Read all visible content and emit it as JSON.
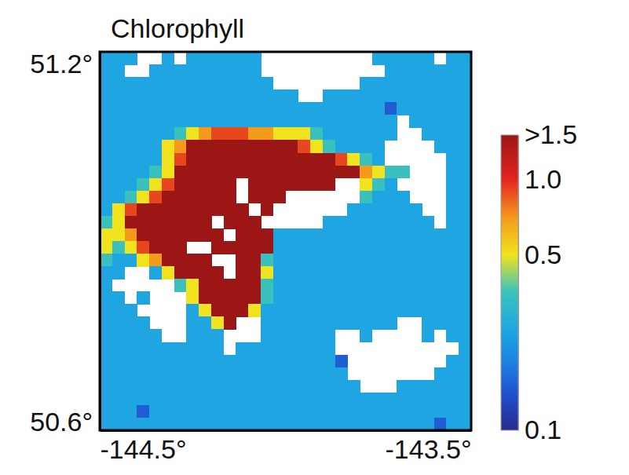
{
  "chart_data": {
    "type": "heatmap",
    "title": "Chlorophyll",
    "xlim": [
      -144.5,
      -143.5
    ],
    "xticks": [
      {
        "value": -144.5,
        "label": "-144.5°"
      },
      {
        "value": -143.5,
        "label": "-143.5°"
      }
    ],
    "ylim": [
      50.6,
      51.2
    ],
    "yticks": [
      {
        "value": 50.6,
        "label": "50.6°"
      },
      {
        "value": 51.2,
        "label": "51.2°"
      }
    ],
    "cells": [
      [
        0.25,
        0.25,
        0.25,
        null,
        null,
        0.25,
        null,
        0.25,
        0.25,
        0.25,
        0.25,
        0.25,
        0.25,
        null,
        null,
        null,
        null,
        null,
        null,
        null,
        null,
        null,
        0.25,
        0.25,
        0.25,
        0.25,
        0.25,
        null,
        0.25,
        0.25
      ],
      [
        0.25,
        0.25,
        null,
        null,
        0.25,
        0.25,
        0.25,
        0.25,
        0.25,
        0.25,
        0.25,
        0.25,
        0.25,
        null,
        null,
        null,
        null,
        null,
        null,
        null,
        null,
        null,
        null,
        0.25,
        0.25,
        0.25,
        0.25,
        0.25,
        0.25,
        0.25
      ],
      [
        0.25,
        0.25,
        0.25,
        0.25,
        0.25,
        0.25,
        0.25,
        0.25,
        0.25,
        0.25,
        0.25,
        0.25,
        0.25,
        0.25,
        null,
        null,
        null,
        null,
        null,
        null,
        null,
        0.25,
        0.25,
        0.25,
        0.25,
        0.25,
        0.25,
        0.25,
        0.25,
        0.25
      ],
      [
        0.25,
        0.25,
        0.25,
        0.25,
        0.25,
        0.25,
        0.25,
        0.25,
        0.25,
        0.25,
        0.25,
        0.25,
        0.25,
        0.25,
        0.25,
        0.25,
        null,
        null,
        0.25,
        0.25,
        0.25,
        0.25,
        0.25,
        0.25,
        0.25,
        0.25,
        0.25,
        0.25,
        0.25,
        0.25
      ],
      [
        0.25,
        0.25,
        0.25,
        0.25,
        0.25,
        0.25,
        0.25,
        0.25,
        0.25,
        0.25,
        0.25,
        0.25,
        0.25,
        0.25,
        0.25,
        0.25,
        0.25,
        0.25,
        0.25,
        0.25,
        0.25,
        0.25,
        0.25,
        0.15,
        0.25,
        0.25,
        0.25,
        0.25,
        0.25,
        0.25
      ],
      [
        0.25,
        0.25,
        0.25,
        0.25,
        0.25,
        0.25,
        0.25,
        0.25,
        0.25,
        0.25,
        0.25,
        0.25,
        0.25,
        0.25,
        0.25,
        0.25,
        0.25,
        0.25,
        0.25,
        0.25,
        0.25,
        0.25,
        0.25,
        0.25,
        null,
        0.25,
        0.25,
        0.25,
        0.25,
        0.25
      ],
      [
        0.25,
        0.25,
        0.25,
        0.25,
        0.25,
        0.25,
        0.35,
        0.5,
        0.7,
        0.9,
        0.9,
        0.9,
        0.7,
        0.7,
        0.5,
        0.5,
        0.5,
        0.35,
        0.25,
        0.25,
        0.25,
        0.25,
        0.25,
        0.25,
        null,
        null,
        0.25,
        0.25,
        0.25,
        0.25
      ],
      [
        0.25,
        0.25,
        0.25,
        0.25,
        0.25,
        0.5,
        0.7,
        1.6,
        1.6,
        1.6,
        1.6,
        1.6,
        1.6,
        1.6,
        1.6,
        1.6,
        0.9,
        0.5,
        0.35,
        0.25,
        0.25,
        0.25,
        0.25,
        null,
        null,
        null,
        null,
        0.25,
        0.25,
        0.25
      ],
      [
        0.25,
        0.25,
        0.25,
        0.25,
        0.25,
        0.5,
        0.9,
        1.6,
        1.6,
        1.6,
        1.6,
        1.6,
        1.6,
        1.6,
        1.6,
        1.6,
        1.6,
        1.6,
        1.6,
        0.9,
        0.5,
        0.35,
        0.25,
        null,
        null,
        null,
        null,
        null,
        0.25,
        0.25
      ],
      [
        0.25,
        0.25,
        0.25,
        0.25,
        0.35,
        0.5,
        1.6,
        1.6,
        1.6,
        1.6,
        1.6,
        1.6,
        1.6,
        1.6,
        1.6,
        1.6,
        1.6,
        1.6,
        1.6,
        1.6,
        1.6,
        0.7,
        0.5,
        0.35,
        0.35,
        null,
        null,
        null,
        0.25,
        0.25
      ],
      [
        0.25,
        0.25,
        0.25,
        0.35,
        0.5,
        0.9,
        1.6,
        1.6,
        1.6,
        1.6,
        1.6,
        null,
        1.6,
        1.6,
        1.6,
        1.6,
        1.6,
        1.6,
        1.6,
        null,
        null,
        0.5,
        0.35,
        0.25,
        null,
        null,
        null,
        null,
        0.25,
        0.25
      ],
      [
        0.25,
        0.25,
        0.35,
        0.5,
        0.9,
        1.6,
        1.6,
        1.6,
        1.6,
        1.6,
        1.6,
        null,
        1.6,
        1.6,
        1.6,
        null,
        null,
        null,
        null,
        null,
        null,
        0.35,
        0.25,
        0.25,
        0.25,
        null,
        null,
        null,
        0.25,
        0.25
      ],
      [
        0.25,
        0.5,
        0.9,
        1.6,
        1.6,
        1.6,
        1.6,
        1.6,
        1.6,
        1.6,
        1.6,
        1.6,
        null,
        1.6,
        null,
        null,
        null,
        null,
        null,
        null,
        0.25,
        0.25,
        0.25,
        0.25,
        0.25,
        0.25,
        null,
        null,
        0.25,
        0.25
      ],
      [
        0.35,
        0.5,
        1.6,
        1.6,
        1.6,
        1.6,
        1.6,
        1.6,
        1.6,
        null,
        1.6,
        1.6,
        1.6,
        null,
        null,
        null,
        null,
        null,
        0.25,
        0.25,
        0.25,
        0.25,
        0.25,
        0.25,
        0.25,
        0.25,
        0.25,
        null,
        0.25,
        0.25
      ],
      [
        0.5,
        0.5,
        0.7,
        1.6,
        1.6,
        1.6,
        1.6,
        1.6,
        1.6,
        1.6,
        null,
        1.6,
        1.6,
        1.6,
        0.25,
        0.25,
        0.25,
        0.25,
        0.25,
        0.25,
        0.25,
        0.25,
        0.25,
        0.25,
        0.25,
        0.25,
        0.25,
        0.25,
        0.25,
        0.25
      ],
      [
        0.5,
        0.35,
        0.5,
        0.9,
        1.6,
        1.6,
        1.6,
        null,
        null,
        1.6,
        1.6,
        1.6,
        1.6,
        1.6,
        0.25,
        0.25,
        0.25,
        0.25,
        0.25,
        0.25,
        0.25,
        0.25,
        0.25,
        0.25,
        0.25,
        0.25,
        0.25,
        0.25,
        0.25,
        0.25
      ],
      [
        0.35,
        0.25,
        0.25,
        0.5,
        0.7,
        1.6,
        1.6,
        1.6,
        1.6,
        null,
        null,
        1.6,
        1.6,
        0.35,
        0.25,
        0.25,
        0.25,
        0.25,
        0.25,
        0.25,
        0.25,
        0.25,
        0.25,
        0.25,
        0.25,
        0.25,
        0.25,
        0.25,
        0.25,
        0.25
      ],
      [
        0.25,
        0.25,
        null,
        null,
        0.25,
        0.5,
        1.6,
        1.6,
        1.6,
        1.6,
        null,
        1.6,
        1.6,
        0.5,
        0.25,
        0.25,
        0.25,
        0.25,
        0.25,
        0.25,
        0.25,
        0.25,
        0.25,
        0.25,
        0.25,
        0.25,
        0.25,
        0.25,
        0.25,
        0.25
      ],
      [
        0.25,
        null,
        null,
        null,
        null,
        null,
        0.35,
        0.5,
        1.6,
        1.6,
        1.6,
        1.6,
        1.6,
        0.35,
        0.25,
        0.25,
        0.25,
        0.25,
        0.25,
        0.25,
        0.25,
        0.25,
        0.25,
        0.25,
        0.25,
        0.25,
        0.25,
        0.25,
        0.25,
        0.25
      ],
      [
        0.25,
        0.25,
        null,
        0.25,
        null,
        null,
        null,
        0.5,
        1.6,
        1.6,
        1.6,
        1.6,
        1.6,
        0.35,
        0.25,
        0.25,
        0.25,
        0.25,
        0.25,
        0.25,
        0.25,
        0.25,
        0.25,
        0.25,
        0.25,
        0.25,
        0.25,
        0.25,
        0.25,
        0.25
      ],
      [
        0.25,
        0.25,
        0.25,
        null,
        null,
        null,
        null,
        0.25,
        0.5,
        1.6,
        1.6,
        1.6,
        0.5,
        0.25,
        0.25,
        0.25,
        0.25,
        0.25,
        0.25,
        0.25,
        0.25,
        0.25,
        0.25,
        0.25,
        0.25,
        0.25,
        0.25,
        0.25,
        0.25,
        0.25
      ],
      [
        0.25,
        0.25,
        0.25,
        0.25,
        null,
        null,
        null,
        0.25,
        0.25,
        0.5,
        1.6,
        null,
        null,
        0.25,
        0.25,
        0.25,
        0.25,
        0.25,
        0.25,
        0.25,
        0.25,
        0.25,
        0.25,
        0.25,
        null,
        null,
        0.25,
        0.25,
        0.25,
        0.25
      ],
      [
        0.25,
        0.25,
        0.25,
        0.25,
        0.25,
        null,
        null,
        0.25,
        0.25,
        0.25,
        null,
        null,
        null,
        0.25,
        0.25,
        0.25,
        0.25,
        0.25,
        0.25,
        null,
        null,
        0.25,
        null,
        null,
        null,
        null,
        0.25,
        null,
        0.25,
        0.25
      ],
      [
        0.25,
        0.25,
        0.25,
        0.25,
        0.25,
        0.25,
        0.25,
        0.25,
        0.25,
        0.25,
        null,
        0.25,
        0.25,
        0.25,
        0.25,
        0.25,
        0.25,
        0.25,
        0.25,
        null,
        null,
        null,
        null,
        null,
        null,
        null,
        null,
        null,
        null,
        0.25
      ],
      [
        0.25,
        0.25,
        0.25,
        0.25,
        0.25,
        0.25,
        0.25,
        0.25,
        0.25,
        0.25,
        0.25,
        0.25,
        0.25,
        0.25,
        0.25,
        0.25,
        0.25,
        0.25,
        0.25,
        0.15,
        null,
        null,
        null,
        null,
        null,
        null,
        null,
        null,
        0.25,
        0.25
      ],
      [
        0.25,
        0.25,
        0.25,
        0.25,
        0.25,
        0.25,
        0.25,
        0.25,
        0.25,
        0.25,
        0.25,
        0.25,
        0.25,
        0.25,
        0.25,
        0.25,
        0.25,
        0.25,
        0.25,
        0.25,
        null,
        null,
        null,
        null,
        null,
        null,
        null,
        0.25,
        0.25,
        0.25
      ],
      [
        0.25,
        0.25,
        0.25,
        0.25,
        0.25,
        0.25,
        0.25,
        0.25,
        0.25,
        0.25,
        0.25,
        0.25,
        0.25,
        0.25,
        0.25,
        0.25,
        0.25,
        0.25,
        0.25,
        0.25,
        0.25,
        null,
        null,
        null,
        0.25,
        0.25,
        0.25,
        0.25,
        0.25,
        0.25
      ],
      [
        0.25,
        0.25,
        0.25,
        0.25,
        0.25,
        0.25,
        0.25,
        0.25,
        0.25,
        0.25,
        0.25,
        0.25,
        0.25,
        0.25,
        0.25,
        0.25,
        0.25,
        0.25,
        0.25,
        0.25,
        0.25,
        0.25,
        0.25,
        0.25,
        0.25,
        0.25,
        0.25,
        0.25,
        0.25,
        0.25
      ],
      [
        0.25,
        0.25,
        0.25,
        0.15,
        0.25,
        0.25,
        0.25,
        0.25,
        0.25,
        0.25,
        0.25,
        0.25,
        0.25,
        0.25,
        0.25,
        0.25,
        0.25,
        0.25,
        0.25,
        0.25,
        0.25,
        0.25,
        0.25,
        0.25,
        0.25,
        0.25,
        0.25,
        0.25,
        0.25,
        0.25
      ],
      [
        0.25,
        0.25,
        0.25,
        0.25,
        0.25,
        0.25,
        0.25,
        0.25,
        0.25,
        0.25,
        0.25,
        0.25,
        0.25,
        0.25,
        0.25,
        0.25,
        0.25,
        0.25,
        0.25,
        0.25,
        0.25,
        0.25,
        0.25,
        0.25,
        0.25,
        0.25,
        0.25,
        0.15,
        0.25,
        0.25
      ]
    ],
    "colorbar": {
      "range": [
        0.1,
        1.5
      ],
      "log": true,
      "ticks": [
        0.1,
        0.5,
        {
          "value": 1,
          "label": "1.0"
        },
        {
          "value": 1.5,
          "label": ">1.5"
        }
      ]
    }
  }
}
